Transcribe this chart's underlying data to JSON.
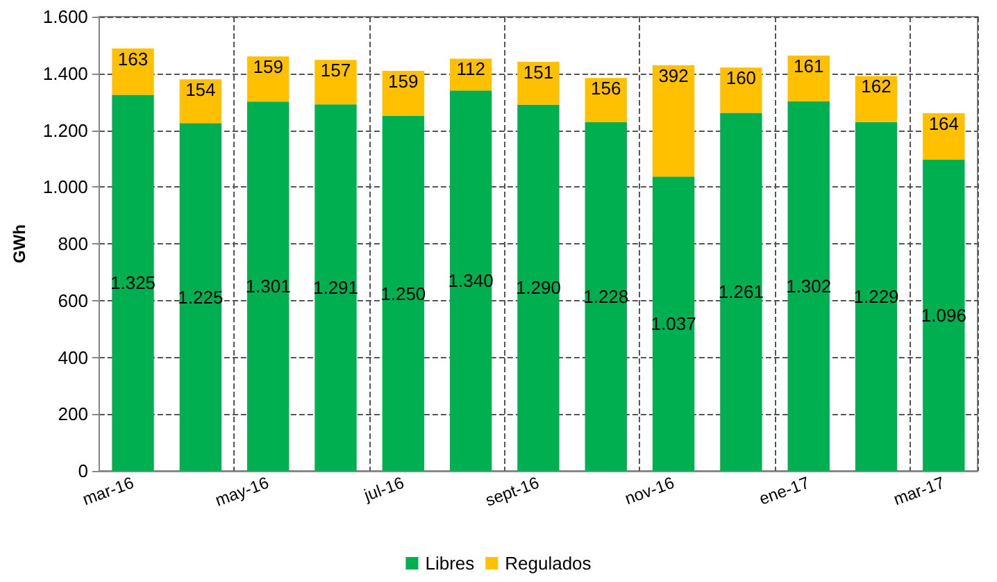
{
  "chart_data": {
    "type": "bar",
    "stacked": true,
    "ylabel": "GWh",
    "categories": [
      "mar-16",
      null,
      "may-16",
      null,
      "jul-16",
      null,
      "sept-16",
      null,
      "nov-16",
      null,
      "ene-17",
      null,
      "mar-17"
    ],
    "series": [
      {
        "name": "Libres",
        "color": "#00b050",
        "values": [
          1325,
          1225,
          1301,
          1291,
          1250,
          1340,
          1290,
          1228,
          1037,
          1261,
          1302,
          1229,
          1096
        ],
        "value_labels": [
          "1.325",
          "1.225",
          "1.301",
          "1.291",
          "1.250",
          "1.340",
          "1.290",
          "1.228",
          "1.037",
          "1.261",
          "1.302",
          "1.229",
          "1.096"
        ]
      },
      {
        "name": "Regulados",
        "color": "#ffc000",
        "values": [
          163,
          154,
          159,
          157,
          159,
          112,
          151,
          156,
          392,
          160,
          161,
          162,
          164
        ],
        "value_labels": [
          "163",
          "154",
          "159",
          "157",
          "159",
          "112",
          "151",
          "156",
          "392",
          "160",
          "161",
          "162",
          "164"
        ]
      }
    ],
    "ylim": [
      0,
      1600
    ],
    "yticks": [
      0,
      200,
      400,
      600,
      800,
      {
        "value": 1000,
        "label": "1.000"
      },
      {
        "value": 1200,
        "label": "1.200"
      },
      {
        "value": 1400,
        "label": "1.400"
      },
      {
        "value": 1600,
        "label": "1.600"
      }
    ],
    "grid": true,
    "legend": "bottom"
  }
}
